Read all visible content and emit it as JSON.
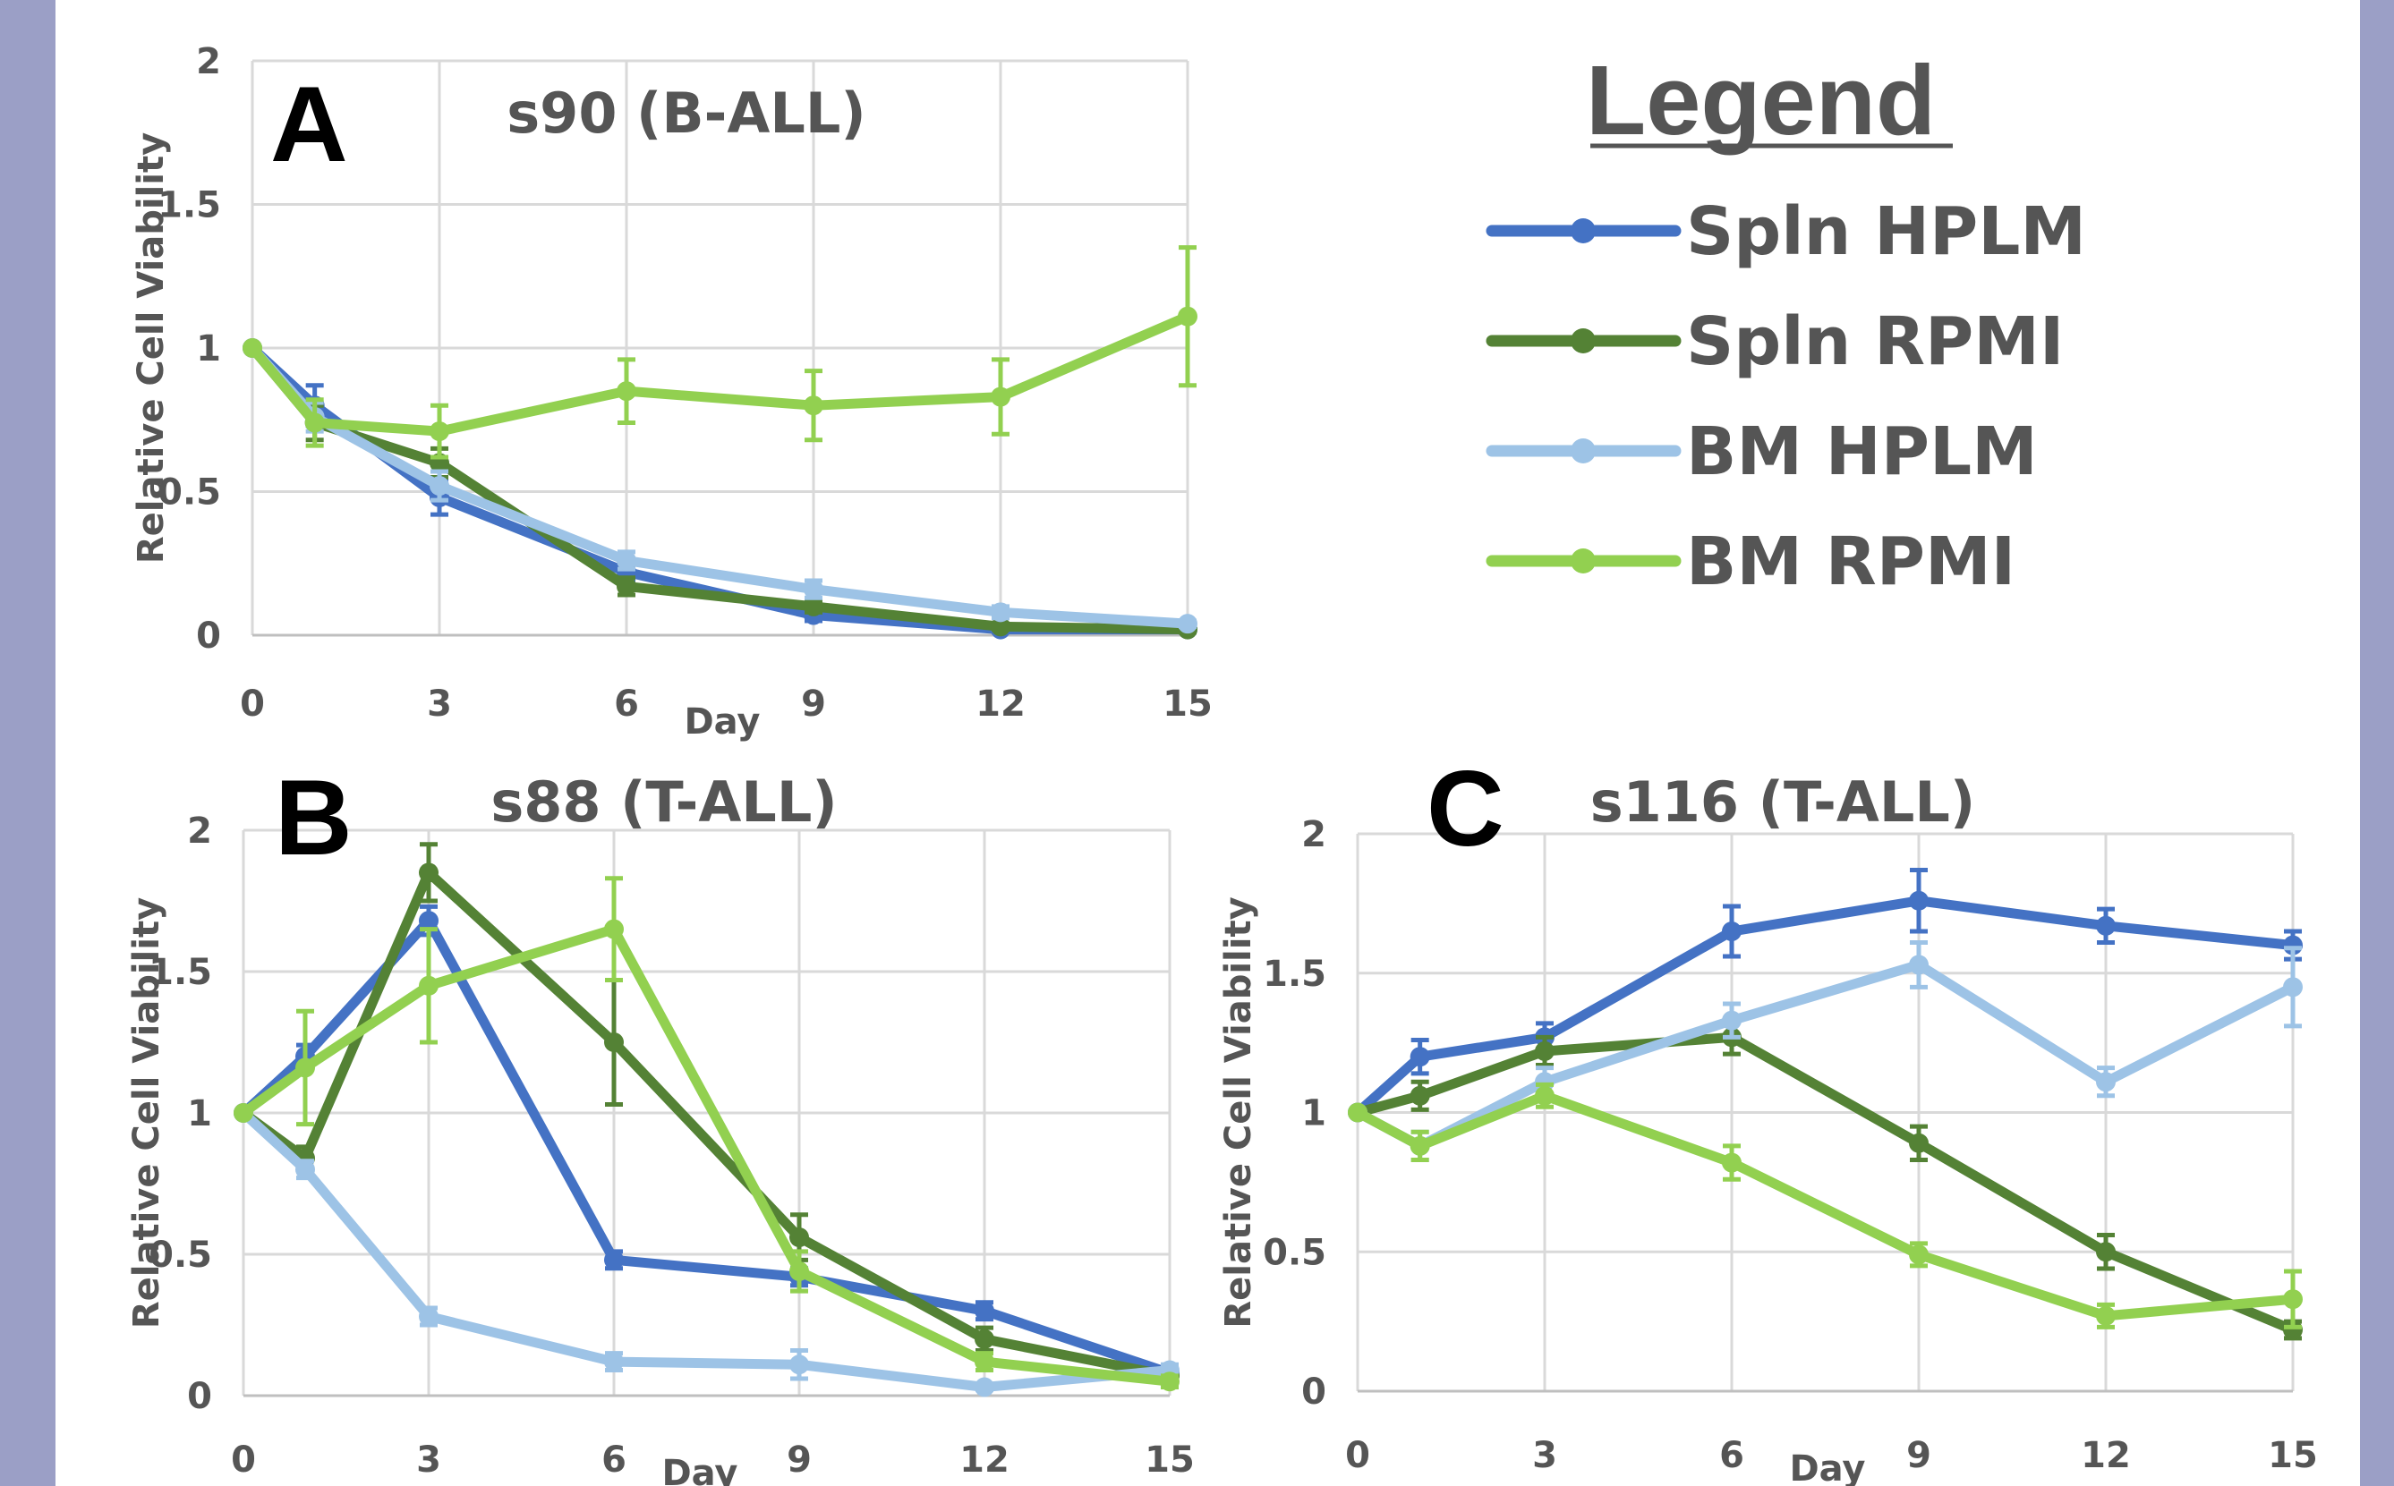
{
  "colors": {
    "border": "#9b9fc6",
    "grid": "#d9d9d9",
    "text": "#555555",
    "spln_hplm": "#4472c4",
    "spln_rpmi": "#548235",
    "bm_hplm": "#9dc3e6",
    "bm_rpmi": "#92d050"
  },
  "legend": {
    "title": "Legend",
    "items": [
      {
        "label": "Spln HPLM",
        "color": "#4472c4"
      },
      {
        "label": "Spln RPMI",
        "color": "#548235"
      },
      {
        "label": "BM HPLM",
        "color": "#9dc3e6"
      },
      {
        "label": "BM RPMI",
        "color": "#92d050"
      }
    ]
  },
  "chart_data": [
    {
      "panel": "A",
      "type": "line",
      "title": "s90 (B-ALL)",
      "xlabel": "Day",
      "ylabel": "Relative Cell Viability",
      "xlim": [
        0,
        15
      ],
      "ylim": [
        0,
        2
      ],
      "xticks": [
        0,
        3,
        6,
        9,
        12,
        15
      ],
      "yticks": [
        0,
        0.5,
        1,
        1.5,
        2
      ],
      "ytick_labels": [
        "0",
        "0.5",
        "1",
        "1.5",
        "2"
      ],
      "grid": true,
      "series": [
        {
          "name": "Spln HPLM",
          "color": "#4472c4",
          "x": [
            0,
            1,
            3,
            6,
            9,
            12,
            15
          ],
          "y": [
            1.0,
            0.8,
            0.48,
            0.22,
            0.07,
            0.02,
            0.02
          ],
          "err": [
            0,
            0.07,
            0.06,
            0.03,
            0.02,
            0.01,
            0.01
          ]
        },
        {
          "name": "Spln RPMI",
          "color": "#548235",
          "x": [
            0,
            1,
            3,
            6,
            9,
            12,
            15
          ],
          "y": [
            1.0,
            0.74,
            0.6,
            0.17,
            0.1,
            0.03,
            0.02
          ],
          "err": [
            0,
            0.06,
            0.05,
            0.03,
            0.02,
            0.01,
            0.01
          ]
        },
        {
          "name": "BM HPLM",
          "color": "#9dc3e6",
          "x": [
            0,
            1,
            3,
            6,
            9,
            12,
            15
          ],
          "y": [
            1.0,
            0.76,
            0.52,
            0.26,
            0.16,
            0.08,
            0.04
          ],
          "err": [
            0,
            0.05,
            0.05,
            0.03,
            0.03,
            0.02,
            0.01
          ]
        },
        {
          "name": "BM RPMI",
          "color": "#92d050",
          "x": [
            0,
            1,
            3,
            6,
            9,
            12,
            15
          ],
          "y": [
            1.0,
            0.74,
            0.71,
            0.85,
            0.8,
            0.83,
            1.11
          ],
          "err": [
            0,
            0.08,
            0.09,
            0.11,
            0.12,
            0.13,
            0.24
          ]
        }
      ]
    },
    {
      "panel": "B",
      "type": "line",
      "title": "s88 (T-ALL)",
      "xlabel": "Day",
      "ylabel": "Relative Cell Viability",
      "xlim": [
        0,
        15
      ],
      "ylim": [
        0,
        2
      ],
      "xticks": [
        0,
        3,
        6,
        9,
        12,
        15
      ],
      "yticks": [
        0,
        0.5,
        1,
        1.5,
        2
      ],
      "ytick_labels": [
        "0",
        "0.5",
        "1",
        "1.5",
        "2"
      ],
      "grid": true,
      "series": [
        {
          "name": "Spln HPLM",
          "color": "#4472c4",
          "x": [
            0,
            1,
            3,
            6,
            9,
            12,
            15
          ],
          "y": [
            1.0,
            1.2,
            1.68,
            0.48,
            0.42,
            0.3,
            0.08
          ],
          "err": [
            0,
            0.04,
            0.05,
            0.03,
            0.03,
            0.03,
            0.02
          ]
        },
        {
          "name": "Spln RPMI",
          "color": "#548235",
          "x": [
            0,
            1,
            3,
            6,
            9,
            12,
            15
          ],
          "y": [
            1.0,
            0.84,
            1.85,
            1.25,
            0.56,
            0.2,
            0.07
          ],
          "err": [
            0,
            0.04,
            0.1,
            0.22,
            0.08,
            0.04,
            0.02
          ]
        },
        {
          "name": "BM HPLM",
          "color": "#9dc3e6",
          "x": [
            0,
            1,
            3,
            6,
            9,
            12,
            15
          ],
          "y": [
            1.0,
            0.8,
            0.28,
            0.12,
            0.11,
            0.03,
            0.09
          ],
          "err": [
            0,
            0.03,
            0.03,
            0.03,
            0.05,
            0.01,
            0.02
          ]
        },
        {
          "name": "BM RPMI",
          "color": "#92d050",
          "x": [
            0,
            1,
            3,
            6,
            9,
            12,
            15
          ],
          "y": [
            1.0,
            1.16,
            1.45,
            1.65,
            0.44,
            0.12,
            0.05
          ],
          "err": [
            0,
            0.2,
            0.2,
            0.18,
            0.07,
            0.03,
            0.02
          ]
        }
      ]
    },
    {
      "panel": "C",
      "type": "line",
      "title": "s116 (T-ALL)",
      "xlabel": "Day",
      "ylabel": "Relative Cell Viability",
      "xlim": [
        0,
        15
      ],
      "ylim": [
        0,
        2
      ],
      "xticks": [
        0,
        3,
        6,
        9,
        12,
        15
      ],
      "yticks": [
        0,
        0.5,
        1,
        1.5,
        2
      ],
      "ytick_labels": [
        "0",
        "0.5",
        "1",
        "1.5",
        "2"
      ],
      "grid": true,
      "series": [
        {
          "name": "Spln HPLM",
          "color": "#4472c4",
          "x": [
            0,
            1,
            3,
            6,
            9,
            12,
            15
          ],
          "y": [
            1.0,
            1.2,
            1.27,
            1.65,
            1.76,
            1.67,
            1.6
          ],
          "err": [
            0,
            0.06,
            0.05,
            0.09,
            0.11,
            0.06,
            0.05
          ]
        },
        {
          "name": "Spln RPMI",
          "color": "#548235",
          "x": [
            0,
            1,
            3,
            6,
            9,
            12,
            15
          ],
          "y": [
            1.0,
            1.06,
            1.22,
            1.27,
            0.89,
            0.5,
            0.22
          ],
          "err": [
            0,
            0.05,
            0.05,
            0.06,
            0.06,
            0.06,
            0.03
          ]
        },
        {
          "name": "BM HPLM",
          "color": "#9dc3e6",
          "x": [
            0,
            1,
            3,
            6,
            9,
            12,
            15
          ],
          "y": [
            1.0,
            0.88,
            1.11,
            1.33,
            1.53,
            1.11,
            1.45
          ],
          "err": [
            0,
            0.05,
            0.05,
            0.06,
            0.08,
            0.05,
            0.14
          ]
        },
        {
          "name": "BM RPMI",
          "color": "#92d050",
          "x": [
            0,
            1,
            3,
            6,
            9,
            12,
            15
          ],
          "y": [
            1.0,
            0.88,
            1.06,
            0.82,
            0.49,
            0.27,
            0.33
          ],
          "err": [
            0,
            0.05,
            0.04,
            0.06,
            0.04,
            0.04,
            0.1
          ]
        }
      ]
    }
  ]
}
